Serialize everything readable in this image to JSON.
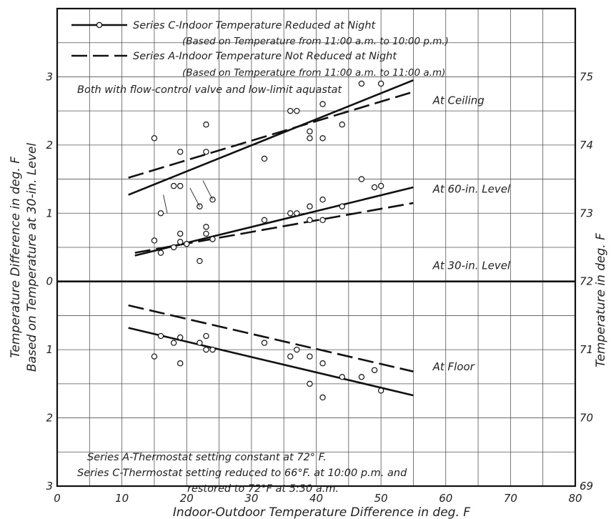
{
  "chart_data": {
    "type": "scatter",
    "xlabel": "Indoor-Outdoor Temperature Difference in deg. F",
    "ylabel_left_line1": "Temperature Difference in deg. F",
    "ylabel_left_line2": "Based on Temperature at 30-in. Level",
    "ylabel_right": "Temperature in deg. F",
    "xlim": [
      0,
      80
    ],
    "ylim": [
      -3,
      4
    ],
    "grid": true,
    "x_ticks": [
      "0",
      "10",
      "20",
      "30",
      "40",
      "50",
      "60",
      "70",
      "80"
    ],
    "y_ticks_left": [
      {
        "v": 3,
        "label": "3"
      },
      {
        "v": 2,
        "label": "2"
      },
      {
        "v": 1,
        "label": "1"
      },
      {
        "v": 0,
        "label": "0"
      },
      {
        "v": -1,
        "label": "1"
      },
      {
        "v": -2,
        "label": "2"
      },
      {
        "v": -3,
        "label": "3"
      }
    ],
    "y_ticks_right": [
      {
        "v": 3,
        "label": "75"
      },
      {
        "v": 2,
        "label": "74"
      },
      {
        "v": 1,
        "label": "73"
      },
      {
        "v": 0,
        "label": "72"
      },
      {
        "v": -1,
        "label": "71"
      },
      {
        "v": -2,
        "label": "70"
      },
      {
        "v": -3,
        "label": "69"
      }
    ],
    "legend": {
      "placement": "top",
      "entries": [
        {
          "style": "solid-with-circle",
          "line1": "Series C-Indoor Temperature Reduced at Night",
          "line2": "(Based on Temperature from 11:00 a.m. to 10:00 p.m.)"
        },
        {
          "style": "dashed",
          "line1": "Series A-Indoor Temperature Not Reduced at Night",
          "line2": "(Based on Temperature from 11:00 a.m. to 11:00 a.m)"
        }
      ],
      "note": "Both with flow-control valve and low-limit aquastat"
    },
    "annotations": [
      {
        "text": "At Ceiling",
        "x": 58,
        "y": 2.6
      },
      {
        "text": "At 60-in. Level",
        "x": 58,
        "y": 1.3
      },
      {
        "text": "At 30-in. Level",
        "x": 58,
        "y": 0.18
      },
      {
        "text": "At Floor",
        "x": 58,
        "y": -1.3
      }
    ],
    "footnote": [
      "Series A-Thermostat setting constant at 72° F.",
      "Series C-Thermostat setting reduced to 66°F. at 10:00 p.m. and",
      "restored to 72°F at 5:30 a.m."
    ],
    "fit_lines": [
      {
        "level": "ceiling",
        "series": "C",
        "style": "solid",
        "x": [
          11,
          55
        ],
        "y": [
          1.27,
          2.95
        ]
      },
      {
        "level": "ceiling",
        "series": "A",
        "style": "dashed",
        "x": [
          11,
          55
        ],
        "y": [
          1.52,
          2.78
        ]
      },
      {
        "level": "60-in",
        "series": "C",
        "style": "solid",
        "x": [
          12,
          55
        ],
        "y": [
          0.38,
          1.38
        ]
      },
      {
        "level": "60-in",
        "series": "A",
        "style": "dashed",
        "x": [
          12,
          55
        ],
        "y": [
          0.42,
          1.15
        ]
      },
      {
        "level": "30-in",
        "series": "reference",
        "style": "solid",
        "x": [
          0,
          80
        ],
        "y": [
          0,
          0
        ]
      },
      {
        "level": "floor",
        "series": "C",
        "style": "solid",
        "x": [
          11,
          55
        ],
        "y": [
          -0.68,
          -1.67
        ]
      },
      {
        "level": "floor",
        "series": "A",
        "style": "dashed",
        "x": [
          11,
          55
        ],
        "y": [
          -0.35,
          -1.32
        ]
      }
    ],
    "points": [
      {
        "x": 15,
        "y": 2.1
      },
      {
        "x": 16,
        "y": 1.0
      },
      {
        "x": 18,
        "y": 1.4
      },
      {
        "x": 19,
        "y": 1.9
      },
      {
        "x": 19,
        "y": 1.4
      },
      {
        "x": 22,
        "y": 1.1
      },
      {
        "x": 23,
        "y": 2.3
      },
      {
        "x": 23,
        "y": 1.9
      },
      {
        "x": 24,
        "y": 1.2
      },
      {
        "x": 32,
        "y": 1.8
      },
      {
        "x": 36,
        "y": 2.5
      },
      {
        "x": 37,
        "y": 2.5
      },
      {
        "x": 39,
        "y": 2.2
      },
      {
        "x": 39,
        "y": 2.1
      },
      {
        "x": 41,
        "y": 2.6
      },
      {
        "x": 41,
        "y": 2.1
      },
      {
        "x": 44,
        "y": 2.3
      },
      {
        "x": 47,
        "y": 2.9
      },
      {
        "x": 50,
        "y": 2.9
      },
      {
        "x": 15,
        "y": 0.6
      },
      {
        "x": 16,
        "y": 0.42
      },
      {
        "x": 18,
        "y": 0.5
      },
      {
        "x": 19,
        "y": 0.7
      },
      {
        "x": 19,
        "y": 0.58
      },
      {
        "x": 20,
        "y": 0.55
      },
      {
        "x": 22,
        "y": 0.3
      },
      {
        "x": 23,
        "y": 0.8
      },
      {
        "x": 23,
        "y": 0.7
      },
      {
        "x": 24,
        "y": 0.62
      },
      {
        "x": 32,
        "y": 0.9
      },
      {
        "x": 36,
        "y": 1.0
      },
      {
        "x": 37,
        "y": 1.0
      },
      {
        "x": 39,
        "y": 0.9
      },
      {
        "x": 39,
        "y": 1.1
      },
      {
        "x": 41,
        "y": 1.2
      },
      {
        "x": 41,
        "y": 0.9
      },
      {
        "x": 44,
        "y": 1.1
      },
      {
        "x": 47,
        "y": 1.5
      },
      {
        "x": 49,
        "y": 1.38
      },
      {
        "x": 50,
        "y": 1.4
      },
      {
        "x": 15,
        "y": -1.1
      },
      {
        "x": 16,
        "y": -0.8
      },
      {
        "x": 18,
        "y": -0.9
      },
      {
        "x": 19,
        "y": -1.2
      },
      {
        "x": 19,
        "y": -0.82
      },
      {
        "x": 22,
        "y": -0.9
      },
      {
        "x": 23,
        "y": -1.0
      },
      {
        "x": 23,
        "y": -0.8
      },
      {
        "x": 24,
        "y": -1.0
      },
      {
        "x": 32,
        "y": -0.9
      },
      {
        "x": 36,
        "y": -1.1
      },
      {
        "x": 37,
        "y": -1.0
      },
      {
        "x": 39,
        "y": -1.1
      },
      {
        "x": 39,
        "y": -1.5
      },
      {
        "x": 41,
        "y": -1.7
      },
      {
        "x": 41,
        "y": -1.2
      },
      {
        "x": 44,
        "y": -1.4
      },
      {
        "x": 47,
        "y": -1.4
      },
      {
        "x": 49,
        "y": -1.3
      },
      {
        "x": 50,
        "y": -1.6
      }
    ]
  }
}
